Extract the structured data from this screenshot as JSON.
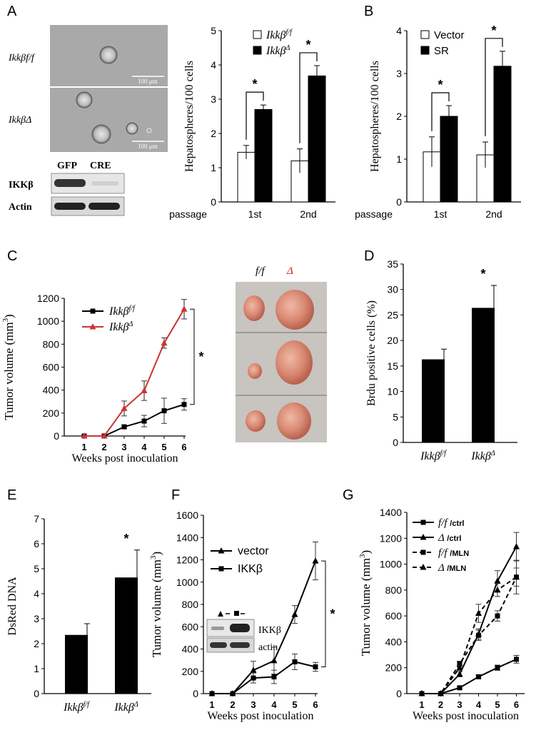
{
  "panel_letters": [
    "A",
    "B",
    "C",
    "D",
    "E",
    "F",
    "G"
  ],
  "micrographs": {
    "top_label": "Ikkβf/f",
    "bottom_label": "IkkβΔ",
    "scale_bar": "100 μm",
    "blot_headers": [
      "GFP",
      "CRE"
    ],
    "blot_rows": [
      "IKKβ",
      "Actin"
    ]
  },
  "xenograft_photo": {
    "labels": [
      "f/f",
      "Δ"
    ]
  },
  "inset_blot": {
    "rows": [
      "IKKβ",
      "actin"
    ]
  },
  "passage_label": "passage",
  "significance_mark": "*",
  "chart_data": [
    {
      "id": "A",
      "type": "bar",
      "ylabel": "Hepatospheres/100 cells",
      "categories": [
        "1st",
        "2nd"
      ],
      "ylim": [
        0,
        5
      ],
      "yticks": [
        0,
        1,
        2,
        3,
        4,
        5
      ],
      "legend_position": "top-left",
      "series": [
        {
          "name": "Ikkβf/f",
          "fill": "#ffffff",
          "values": [
            1.45,
            1.2
          ],
          "errors": [
            0.2,
            0.35
          ]
        },
        {
          "name": "IkkβΔ",
          "fill": "#000000",
          "values": [
            2.7,
            3.68
          ],
          "errors": [
            0.13,
            0.3
          ]
        }
      ],
      "annotations": [
        "*",
        "*"
      ]
    },
    {
      "id": "B",
      "type": "bar",
      "ylabel": "Hepatospheres/100 cells",
      "categories": [
        "1st",
        "2nd"
      ],
      "ylim": [
        0,
        4
      ],
      "yticks": [
        0,
        1,
        2,
        3,
        4
      ],
      "legend_position": "top-left",
      "series": [
        {
          "name": "Vector",
          "fill": "#ffffff",
          "values": [
            1.17,
            1.1
          ],
          "errors": [
            0.35,
            0.3
          ]
        },
        {
          "name": "SR",
          "fill": "#000000",
          "values": [
            2.0,
            3.17
          ],
          "errors": [
            0.25,
            0.35
          ]
        }
      ],
      "annotations": [
        "*",
        "*"
      ]
    },
    {
      "id": "C",
      "type": "line",
      "ylabel": "Tumor volume (mm3)",
      "xlabel": "Weeks post inoculation",
      "x": [
        1,
        2,
        3,
        4,
        5,
        6
      ],
      "ylim": [
        0,
        1200
      ],
      "yticks": [
        0,
        200,
        400,
        600,
        800,
        1000,
        1200
      ],
      "legend_position": "top-left",
      "series": [
        {
          "name": "Ikkβf/f",
          "color": "#000000",
          "marker": "square",
          "values": [
            0,
            0,
            80,
            130,
            220,
            275
          ],
          "errors": [
            0,
            0,
            15,
            50,
            110,
            50
          ]
        },
        {
          "name": "IkkβΔ",
          "color": "#cc3333",
          "marker": "triangle",
          "values": [
            0,
            0,
            240,
            395,
            810,
            1105
          ],
          "errors": [
            0,
            0,
            65,
            85,
            45,
            85
          ]
        }
      ],
      "annotations": [
        "*"
      ]
    },
    {
      "id": "D",
      "type": "bar",
      "ylabel": "Brdu positive cells (%)",
      "categories": [
        "Ikkβf/f",
        "IkkβΔ"
      ],
      "ylim": [
        0,
        35
      ],
      "yticks": [
        0,
        5,
        10,
        15,
        20,
        25,
        30,
        35
      ],
      "series": [
        {
          "values": [
            16.3,
            26.4
          ],
          "errors": [
            2,
            4.4
          ]
        }
      ],
      "annotations": [
        "*"
      ]
    },
    {
      "id": "E",
      "type": "bar",
      "ylabel": "DsRed DNA",
      "categories": [
        "Ikkβf/f",
        "IkkβΔ"
      ],
      "ylim": [
        0,
        7
      ],
      "yticks": [
        0,
        1,
        2,
        3,
        4,
        5,
        6,
        7
      ],
      "series": [
        {
          "values": [
            2.35,
            4.65
          ],
          "errors": [
            0.45,
            1.1
          ]
        }
      ],
      "annotations": [
        "*"
      ]
    },
    {
      "id": "F",
      "type": "line",
      "ylabel": "Tumor volume (mm3)",
      "xlabel": "Weeks post inoculation",
      "x": [
        1,
        2,
        3,
        4,
        5,
        6
      ],
      "ylim": [
        0,
        1600
      ],
      "yticks": [
        0,
        200,
        400,
        600,
        800,
        1000,
        1200,
        1400,
        1600
      ],
      "legend_position": "top-left",
      "series": [
        {
          "name": "vector",
          "color": "#000000",
          "marker": "triangle",
          "values": [
            0,
            0,
            210,
            295,
            710,
            1190
          ],
          "errors": [
            0,
            0,
            80,
            120,
            80,
            170
          ]
        },
        {
          "name": "IKKβ",
          "color": "#000000",
          "marker": "square",
          "values": [
            0,
            0,
            140,
            150,
            285,
            240
          ],
          "errors": [
            0,
            0,
            45,
            60,
            70,
            40
          ]
        }
      ],
      "annotations": [
        "*"
      ]
    },
    {
      "id": "G",
      "type": "line",
      "ylabel": "Tumor volume (mm3)",
      "xlabel": "Weeks post inoculation",
      "x": [
        1,
        2,
        3,
        4,
        5,
        6
      ],
      "ylim": [
        0,
        1400
      ],
      "yticks": [
        0,
        200,
        400,
        600,
        800,
        1000,
        1200,
        1400
      ],
      "legend_position": "top-left",
      "series": [
        {
          "name": "f/f /ctrl",
          "color": "#000000",
          "marker": "square",
          "dash": false,
          "values": [
            0,
            0,
            45,
            130,
            200,
            265
          ],
          "errors": [
            0,
            0,
            10,
            15,
            20,
            30
          ]
        },
        {
          "name": "Δ /ctrl",
          "color": "#000000",
          "marker": "triangle",
          "dash": false,
          "values": [
            0,
            0,
            150,
            460,
            870,
            1135
          ],
          "errors": [
            0,
            0,
            20,
            40,
            80,
            110
          ]
        },
        {
          "name": "f/f /MLN",
          "color": "#000000",
          "marker": "square",
          "dash": true,
          "values": [
            0,
            0,
            230,
            450,
            600,
            900
          ],
          "errors": [
            0,
            0,
            20,
            40,
            40,
            130
          ]
        },
        {
          "name": "Δ /MLN",
          "color": "#000000",
          "marker": "triangle",
          "dash": true,
          "values": [
            0,
            0,
            200,
            620,
            800,
            900
          ],
          "errors": [
            0,
            0,
            20,
            70,
            50,
            70
          ]
        }
      ]
    }
  ]
}
